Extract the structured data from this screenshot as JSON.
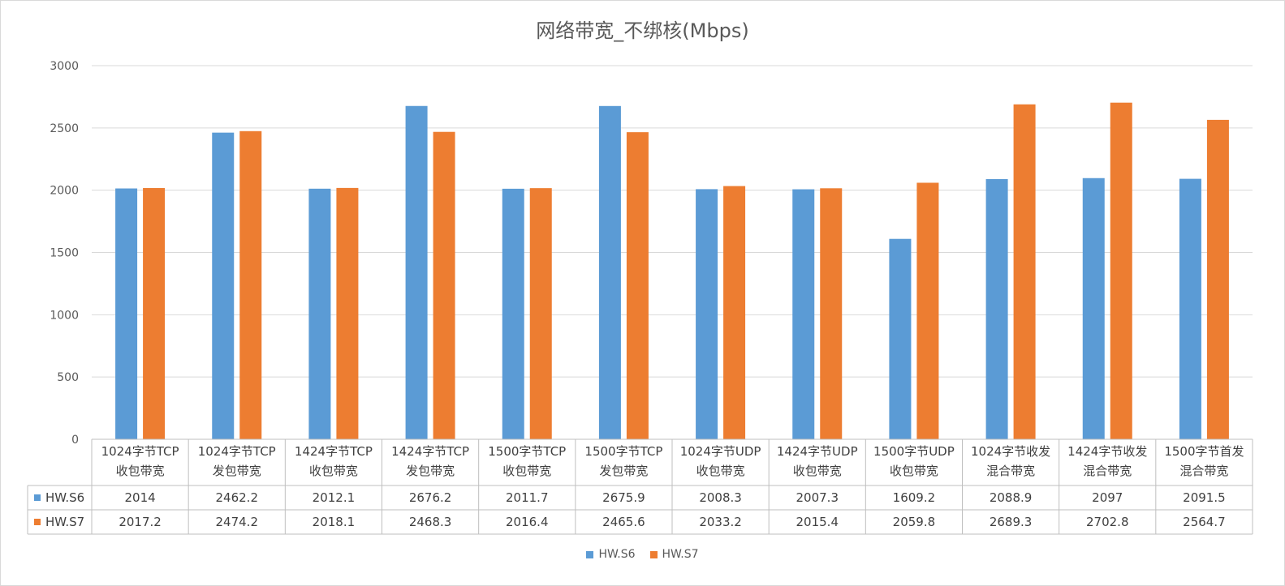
{
  "chart_data": {
    "type": "bar",
    "title": "网络带宽_不绑核(Mbps)",
    "categories": [
      [
        "1024字节TCP",
        "收包带宽"
      ],
      [
        "1024字节TCP",
        "发包带宽"
      ],
      [
        "1424字节TCP",
        "收包带宽"
      ],
      [
        "1424字节TCP",
        "发包带宽"
      ],
      [
        "1500字节TCP",
        "收包带宽"
      ],
      [
        "1500字节TCP",
        "发包带宽"
      ],
      [
        "1024字节UDP",
        "收包带宽"
      ],
      [
        "1424字节UDP",
        "收包带宽"
      ],
      [
        "1500字节UDP",
        "收包带宽"
      ],
      [
        "1024字节收发",
        "混合带宽"
      ],
      [
        "1424字节收发",
        "混合带宽"
      ],
      [
        "1500字节首发",
        "混合带宽"
      ]
    ],
    "series": [
      {
        "name": "HW.S6",
        "color": "#5b9bd5",
        "values": [
          2014,
          2462.2,
          2012.1,
          2676.2,
          2011.7,
          2675.9,
          2008.3,
          2007.3,
          1609.2,
          2088.9,
          2097,
          2091.5
        ],
        "labels": [
          "2014",
          "2462.2",
          "2012.1",
          "2676.2",
          "2011.7",
          "2675.9",
          "2008.3",
          "2007.3",
          "1609.2",
          "2088.9",
          "2097",
          "2091.5"
        ]
      },
      {
        "name": "HW.S7",
        "color": "#ed7d31",
        "values": [
          2017.2,
          2474.2,
          2018.1,
          2468.3,
          2016.4,
          2465.6,
          2033.2,
          2015.4,
          2059.8,
          2689.3,
          2702.8,
          2564.7
        ],
        "labels": [
          "2017.2",
          "2474.2",
          "2018.1",
          "2468.3",
          "2016.4",
          "2465.6",
          "2033.2",
          "2015.4",
          "2059.8",
          "2689.3",
          "2702.8",
          "2564.7"
        ]
      }
    ],
    "ylim": [
      0,
      3000
    ],
    "yticks": [
      0,
      500,
      1000,
      1500,
      2000,
      2500,
      3000
    ],
    "grid": true,
    "legend_position": "bottom",
    "data_table": true
  }
}
